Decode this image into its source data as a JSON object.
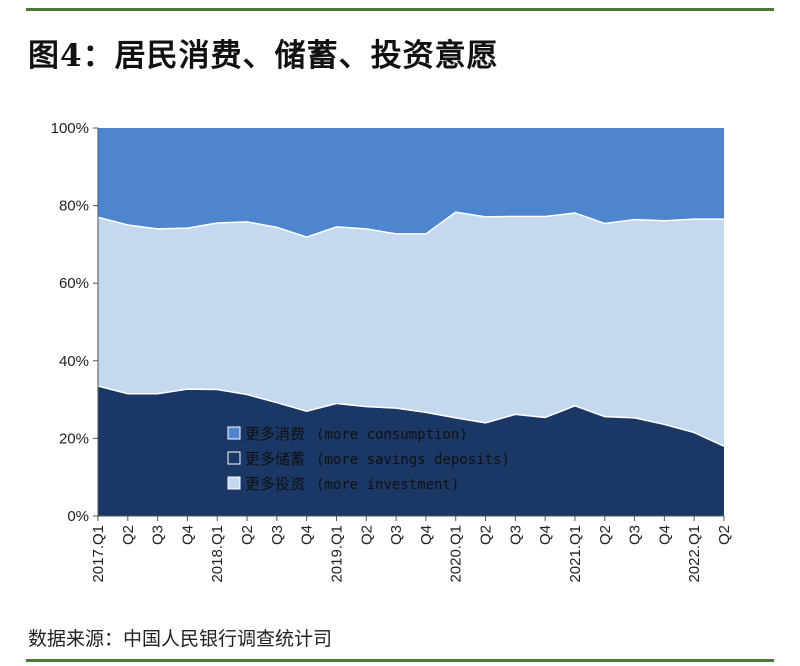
{
  "title": "图4：居民消费、储蓄、投资意愿",
  "source": "数据来源：中国人民银行调查统计司",
  "colors": {
    "consumption": "#4d86cf",
    "savings": "#1a3766",
    "investment": "#c4d8ef",
    "rule": "#4a7a3b"
  },
  "chart_data": {
    "type": "area",
    "stacked": true,
    "percent": true,
    "ylim": [
      0,
      100
    ],
    "yticks": [
      "0%",
      "20%",
      "40%",
      "60%",
      "80%",
      "100%"
    ],
    "categories": [
      "2017.Q1",
      "Q2",
      "Q3",
      "Q4",
      "2018.Q1",
      "Q2",
      "Q3",
      "Q4",
      "2019.Q1",
      "Q2",
      "Q3",
      "Q4",
      "2020.Q1",
      "Q2",
      "Q3",
      "Q4",
      "2021.Q1",
      "Q2",
      "Q3",
      "Q4",
      "2022.Q1",
      "Q2"
    ],
    "series": [
      {
        "name": "更多储蓄",
        "name_en": "(more savings deposits)",
        "key": "savings",
        "values": [
          33.5,
          31.5,
          31.5,
          32.7,
          32.6,
          31.3,
          29.2,
          27.0,
          29.0,
          28.2,
          27.8,
          26.7,
          25.3,
          24.0,
          26.2,
          25.4,
          28.4,
          25.6,
          25.3,
          23.6,
          21.5,
          18.0
        ]
      },
      {
        "name": "更多投资",
        "name_en": "(more investment)",
        "key": "investment",
        "values": [
          43.5,
          43.5,
          42.5,
          41.5,
          42.9,
          44.5,
          45.2,
          44.9,
          45.5,
          45.8,
          44.9,
          46.0,
          53.0,
          53.1,
          51.0,
          51.8,
          49.7,
          49.8,
          51.1,
          52.5,
          55.0,
          58.5
        ]
      },
      {
        "name": "更多消费",
        "name_en": "(more consumption)",
        "key": "consumption",
        "values": [
          23.0,
          25.0,
          26.0,
          25.8,
          24.5,
          24.2,
          25.6,
          28.1,
          25.5,
          26.0,
          27.3,
          27.3,
          21.7,
          22.9,
          22.8,
          22.8,
          21.9,
          24.6,
          23.6,
          23.9,
          23.5,
          23.5
        ]
      }
    ],
    "legend": [
      {
        "name": "更多消费",
        "en": "(more consumption)",
        "key": "consumption"
      },
      {
        "name": "更多储蓄",
        "en": "(more savings deposits)",
        "key": "savings"
      },
      {
        "name": "更多投资",
        "en": "(more investment)",
        "key": "investment"
      }
    ],
    "legend_position": "bottom-center-inside"
  }
}
